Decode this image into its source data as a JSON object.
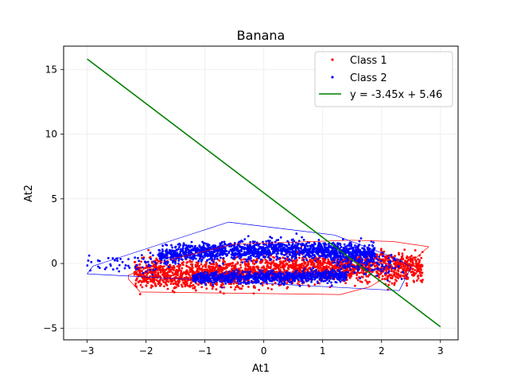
{
  "chart_data": {
    "type": "scatter",
    "title": "Banana",
    "xlabel": "At1",
    "ylabel": "At2",
    "xlim": [
      -3.4,
      3.3
    ],
    "ylim": [
      -5.9,
      16.8
    ],
    "xticks": [
      -3,
      -2,
      -1,
      0,
      1,
      2,
      3
    ],
    "xtick_labels": [
      "−3",
      "−2",
      "−1",
      "0",
      "1",
      "2",
      "3"
    ],
    "yticks": [
      -5,
      0,
      5,
      10,
      15
    ],
    "ytick_labels": [
      "−5",
      "0",
      "5",
      "10",
      "15"
    ],
    "grid": true,
    "legend_position": "top-right",
    "series": [
      {
        "name": "Class 1",
        "kind": "scatter",
        "color": "#ff0000",
        "description": "banana-shaped cluster, x approx -2.3..2.8, y approx -2.5..1.8",
        "hull": [
          [
            -2.3,
            -1.2
          ],
          [
            -2.1,
            -2.2
          ],
          [
            1.3,
            -2.4
          ],
          [
            1.8,
            -1.8
          ],
          [
            2.5,
            0.1
          ],
          [
            2.8,
            1.3
          ],
          [
            2.2,
            1.7
          ],
          [
            1.5,
            1.8
          ],
          [
            -0.5,
            1.5
          ],
          [
            -1.6,
            0.3
          ],
          [
            -2.3,
            -0.9
          ]
        ]
      },
      {
        "name": "Class 2",
        "kind": "scatter",
        "color": "#0000ff",
        "description": "banana-shaped cluster, x approx -3.0..2.5, y approx -2.0..3.2",
        "hull": [
          [
            -3.0,
            -0.8
          ],
          [
            -2.9,
            -0.2
          ],
          [
            -0.6,
            3.2
          ],
          [
            1.2,
            2.2
          ],
          [
            2.3,
            0.3
          ],
          [
            2.5,
            -0.3
          ],
          [
            2.3,
            -2.1
          ],
          [
            -3.0,
            -0.8
          ]
        ]
      },
      {
        "name": "y = -3.45x + 5.46",
        "kind": "line",
        "color": "#008000",
        "x": [
          -3.0,
          3.0
        ],
        "y": [
          15.81,
          -4.89
        ]
      }
    ]
  }
}
